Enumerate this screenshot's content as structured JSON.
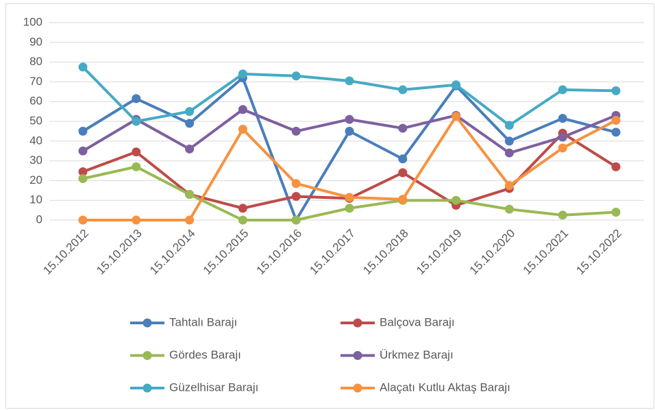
{
  "chart_data": {
    "type": "line",
    "categories": [
      "15.10.2012",
      "15.10.2013",
      "15.10.2014",
      "15.10.2015",
      "15.10.2016",
      "15.10.2017",
      "15.10.2018",
      "15.10.2019",
      "15.10.2020",
      "15.10.2021",
      "15.10.2022"
    ],
    "series": [
      {
        "name": "Tahtalı Barajı",
        "color": "#4a7ebb",
        "values": [
          45,
          61.5,
          49,
          72,
          0,
          45,
          31,
          68,
          40,
          51.5,
          44.5
        ]
      },
      {
        "name": "Balçova Barajı",
        "color": "#be4b48",
        "values": [
          24.5,
          34.5,
          13,
          6,
          12,
          11,
          24,
          7.5,
          16,
          44,
          27
        ]
      },
      {
        "name": "Gördes Barajı",
        "color": "#98b954",
        "values": [
          21,
          27,
          13,
          0,
          0,
          6,
          10,
          10,
          5.5,
          2.5,
          4
        ]
      },
      {
        "name": "Ürkmez Barajı",
        "color": "#7d60a0",
        "values": [
          35,
          51,
          36,
          56,
          45,
          51,
          46.5,
          53,
          34,
          42,
          53
        ]
      },
      {
        "name": "Güzelhisar Barajı",
        "color": "#46aac5",
        "values": [
          77.5,
          50,
          55,
          74,
          73,
          70.5,
          66,
          68.5,
          48,
          66,
          65.5
        ]
      },
      {
        "name": "Alaçatı Kutlu Aktaş Barajı",
        "color": "#f69240",
        "values": [
          0,
          0,
          0,
          46,
          18.5,
          11.5,
          10.5,
          52.5,
          17.5,
          36.5,
          50.5
        ]
      }
    ],
    "ylim": [
      0,
      100
    ],
    "yticks": [
      0,
      10,
      20,
      30,
      40,
      50,
      60,
      70,
      80,
      90,
      100
    ],
    "grid": true
  }
}
